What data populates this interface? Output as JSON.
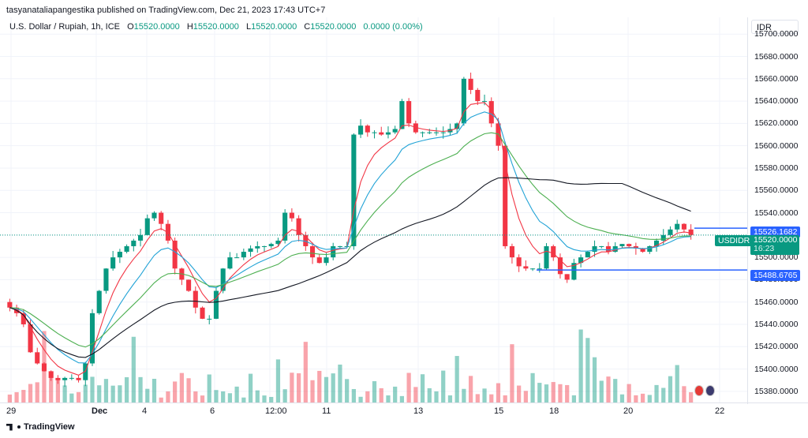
{
  "publish_line": "tasyanataliapangestika published on TradingView.com, Dec 21, 2023 17:43 UTC+7",
  "legend": {
    "symbol": "U.S. Dollar / Rupiah, 1h, ICE",
    "o_key": "O",
    "o_val": "15520.0000",
    "h_key": "H",
    "h_val": "15520.0000",
    "l_key": "L",
    "l_val": "15520.0000",
    "c_key": "C",
    "c_val": "15520.0000",
    "change": "0.0000 (0.00%)"
  },
  "currency_button": "IDR",
  "price_axis": [
    "15700.0000",
    "15680.0000",
    "15660.0000",
    "15640.0000",
    "15620.0000",
    "15600.0000",
    "15580.0000",
    "15560.0000",
    "15540.0000",
    "15500.0000",
    "15480.0000",
    "15460.0000",
    "15440.0000",
    "15420.0000",
    "15400.0000",
    "15380.0000"
  ],
  "time_axis": [
    "29",
    "Dec",
    "4",
    "6",
    "12:00",
    "11",
    "13",
    "15",
    "18",
    "20",
    "22"
  ],
  "tags": {
    "upper_level": "15526.1682",
    "symbol": "USDIDR",
    "current_price": "15520.0000",
    "countdown": "16:23",
    "lower_level": "15488.6765"
  },
  "brand": "TradingView",
  "colors": {
    "up": "#089981",
    "down": "#f23645",
    "ema_fast": "#f23645",
    "ema_mid": "#22a3d6",
    "ema_slow": "#4caf50",
    "sma": "#131722",
    "level": "#2962ff"
  },
  "chart_data": {
    "type": "candlestick",
    "ylim": [
      15370,
      15715
    ],
    "y_ticks": [
      15380,
      15400,
      15420,
      15440,
      15460,
      15480,
      15500,
      15520,
      15540,
      15560,
      15580,
      15600,
      15620,
      15640,
      15660,
      15680,
      15700
    ],
    "levels": [
      15526.1682,
      15488.6765
    ],
    "current_price": 15520.0,
    "closes_approx": [
      15455,
      15450,
      15440,
      15415,
      15405,
      15398,
      15392,
      15390,
      15392,
      15392,
      15390,
      15405,
      15450,
      15470,
      15490,
      15500,
      15505,
      15510,
      15515,
      15520,
      15535,
      15540,
      15530,
      15515,
      15490,
      15480,
      15470,
      15455,
      15445,
      15445,
      15470,
      15490,
      15500,
      15500,
      15505,
      15508,
      15510,
      15510,
      15512,
      15515,
      15540,
      15535,
      15520,
      15510,
      15500,
      15495,
      15500,
      15510,
      15510,
      15510,
      15610,
      15618,
      15612,
      15612,
      15610,
      15612,
      15615,
      15640,
      15620,
      15612,
      15612,
      15612,
      15612,
      15612,
      15615,
      15620,
      15660,
      15650,
      15640,
      15640,
      15620,
      15600,
      15510,
      15500,
      15492,
      15490,
      15490,
      15490,
      15510,
      15500,
      15485,
      15480,
      15495,
      15500,
      15505,
      15510,
      15510,
      15505,
      15510,
      15512,
      15510,
      15508,
      15505,
      15510,
      15515,
      15520,
      15525,
      15530,
      15525,
      15520
    ]
  }
}
